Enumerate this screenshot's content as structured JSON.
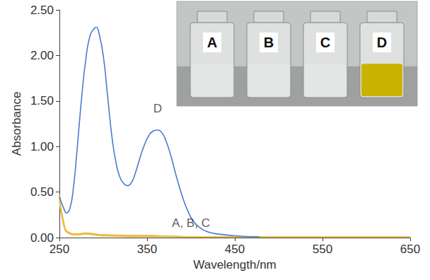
{
  "chart_data": {
    "type": "line",
    "x_label": "Wavelength/nm",
    "y_label": "Absorbance",
    "xlim": [
      250,
      650
    ],
    "xticks": [
      250,
      350,
      450,
      550,
      650
    ],
    "ylim": [
      0,
      2.5
    ],
    "yticks": [
      {
        "value": 0,
        "label": "0.00"
      },
      {
        "value": 0.5,
        "label": "0.50"
      },
      {
        "value": 1,
        "label": "1.00"
      },
      {
        "value": 1.5,
        "label": "1.50"
      },
      {
        "value": 2,
        "label": "2.00"
      },
      {
        "value": 2.5,
        "label": "2.50"
      }
    ],
    "grid": false,
    "series": [
      {
        "name": "A",
        "color": "#f2a93b",
        "x": [
          250,
          255,
          260,
          270,
          280,
          290,
          300,
          350,
          400,
          450,
          550,
          650
        ],
        "values": [
          0.47,
          0.16,
          0.06,
          0.04,
          0.05,
          0.04,
          0.03,
          0.02,
          0.01,
          0.01,
          0.01,
          0.01
        ]
      },
      {
        "name": "B",
        "color": "#e0b62c",
        "x": [
          250,
          255,
          260,
          270,
          280,
          290,
          300,
          350,
          400,
          450,
          550,
          650
        ],
        "values": [
          0.44,
          0.14,
          0.05,
          0.03,
          0.04,
          0.03,
          0.02,
          0.02,
          0.01,
          0.01,
          0.01,
          0.01
        ]
      },
      {
        "name": "C",
        "color": "#f0c040",
        "x": [
          250,
          255,
          260,
          270,
          280,
          290,
          300,
          350,
          400,
          450,
          550,
          650
        ],
        "values": [
          0.42,
          0.13,
          0.05,
          0.03,
          0.04,
          0.03,
          0.02,
          0.01,
          0.01,
          0.01,
          0.01,
          0.01
        ]
      },
      {
        "name": "D",
        "color": "#4a7bd0",
        "x": [
          250,
          255,
          258,
          262,
          266,
          270,
          275,
          280,
          285,
          290,
          292,
          295,
          300,
          305,
          310,
          315,
          320,
          325,
          328,
          332,
          337,
          342,
          347,
          352,
          357,
          362,
          367,
          372,
          377,
          382,
          387,
          392,
          397,
          402,
          410,
          420,
          430,
          450,
          478
        ],
        "values": [
          0.45,
          0.32,
          0.27,
          0.32,
          0.55,
          0.95,
          1.5,
          1.95,
          2.22,
          2.3,
          2.31,
          2.25,
          2.0,
          1.55,
          1.1,
          0.8,
          0.64,
          0.58,
          0.57,
          0.6,
          0.72,
          0.88,
          1.02,
          1.12,
          1.17,
          1.18,
          1.15,
          1.05,
          0.9,
          0.72,
          0.55,
          0.4,
          0.28,
          0.19,
          0.11,
          0.06,
          0.04,
          0.02,
          0.01
        ]
      }
    ],
    "annotations": [
      {
        "text": "D",
        "x": 362,
        "y": 1.42
      },
      {
        "text": "A, B, C",
        "x": 400,
        "y": 0.16
      }
    ],
    "inset": {
      "labels": [
        "A",
        "B",
        "C",
        "D"
      ],
      "colors": [
        "#e4e6e6",
        "#e4e6e6",
        "#e4e6e6",
        "#c9b300"
      ]
    }
  }
}
